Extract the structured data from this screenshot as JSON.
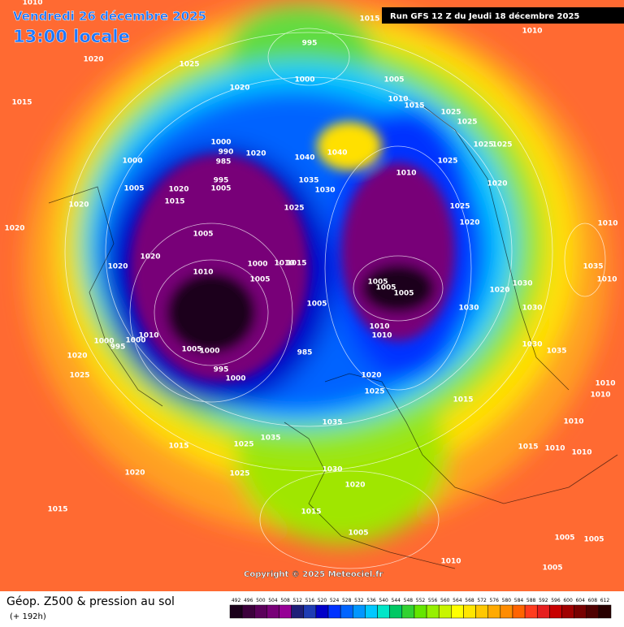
{
  "header": {
    "date": "Vendredi 26 décembre 2025",
    "time": "13:00 locale",
    "run": "Run GFS 12 Z du Jeudi 18 décembre 2025"
  },
  "copyright": "Copyright © 2025 Meteociel.fr",
  "footer": {
    "title": "Géop. Z500 & pression au sol",
    "lead": "(+ 192h)"
  },
  "colorbar": {
    "ticks": [
      492,
      496,
      500,
      504,
      508,
      512,
      516,
      520,
      524,
      528,
      532,
      536,
      540,
      544,
      548,
      552,
      556,
      560,
      564,
      568,
      572,
      576,
      580,
      584,
      588,
      592,
      596,
      600,
      604,
      608,
      612
    ],
    "colors": [
      "#1a001a",
      "#3c003c",
      "#5a005a",
      "#780078",
      "#960096",
      "#1e1e78",
      "#1e3cb4",
      "#0000c8",
      "#0032ff",
      "#0064ff",
      "#0096ff",
      "#00c8ff",
      "#00e6c8",
      "#00c864",
      "#32d232",
      "#64e600",
      "#96f000",
      "#c8f500",
      "#ffff00",
      "#ffe600",
      "#ffc800",
      "#ffaa00",
      "#ff8c00",
      "#ff6400",
      "#ff3c1e",
      "#e61e1e",
      "#c80000",
      "#a00000",
      "#780000",
      "#500000",
      "#280000"
    ]
  },
  "isobar_labels": [
    "1010",
    "1015",
    "1010",
    "1020",
    "995",
    "1025",
    "1000",
    "1020",
    "1005",
    "1015",
    "1010",
    "1015",
    "1025",
    "1025",
    "1000",
    "990",
    "985",
    "1020",
    "1040",
    "1040",
    "1025",
    "1025",
    "1000",
    "1025",
    "1010",
    "995",
    "1005",
    "1035",
    "1005",
    "1020",
    "1030",
    "1020",
    "1015",
    "1025",
    "1025",
    "1020",
    "1020",
    "1005",
    "1020",
    "1010",
    "1020",
    "1000",
    "1010",
    "1015",
    "1020",
    "1035",
    "1010",
    "1005",
    "1005",
    "1005",
    "1005",
    "1030",
    "1020",
    "1010",
    "1005",
    "1030",
    "1030",
    "1010",
    "1010",
    "1010",
    "995",
    "1000",
    "1000",
    "1005",
    "1000",
    "985",
    "1030",
    "1035",
    "1020",
    "995",
    "1000",
    "1025",
    "1020",
    "1025",
    "1010",
    "1010",
    "1015",
    "1035",
    "1010",
    "1035",
    "1015",
    "1025",
    "1015",
    "1010",
    "1010",
    "1020",
    "1025",
    "1030",
    "1020",
    "1015",
    "1015",
    "1005",
    "1005",
    "1005",
    "1010",
    "1005"
  ]
}
